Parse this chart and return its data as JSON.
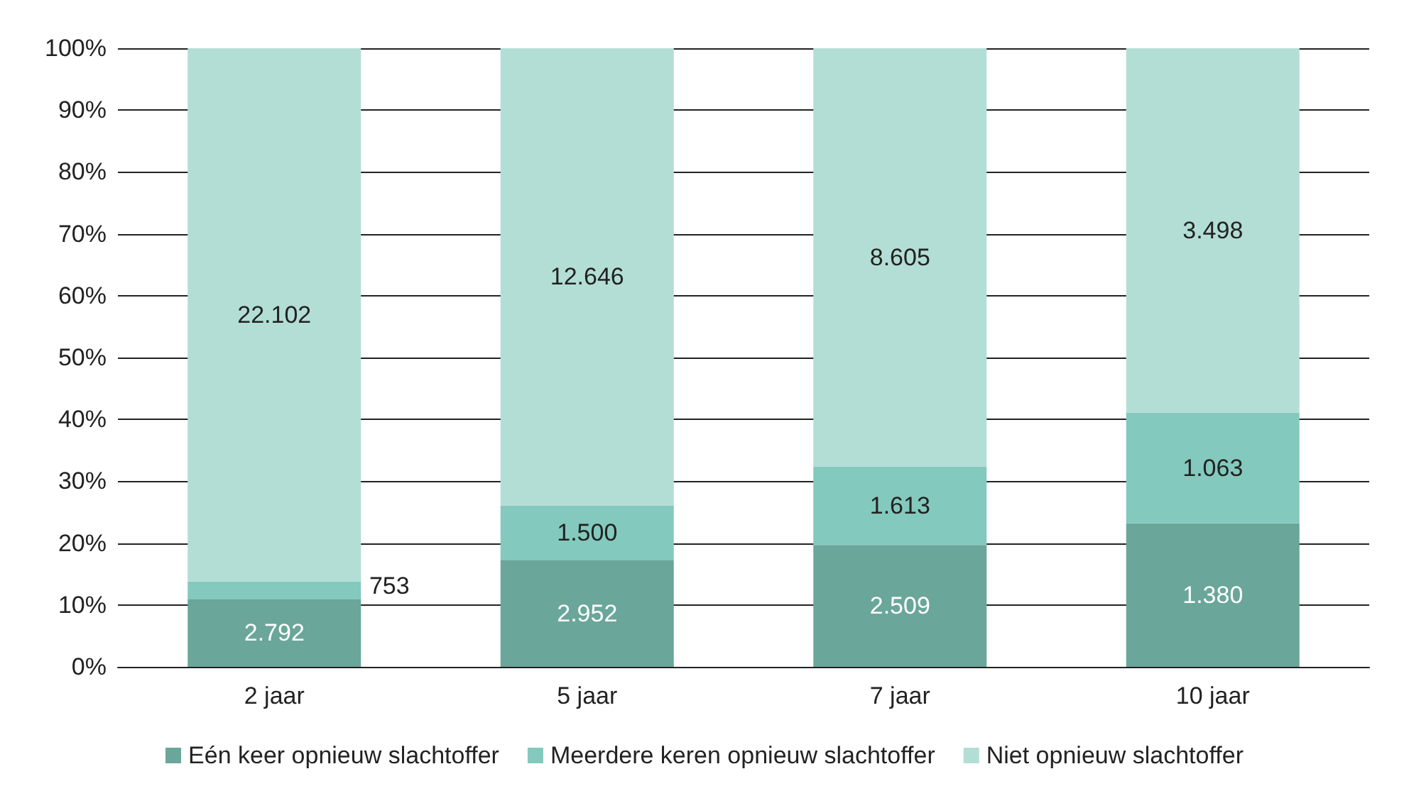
{
  "chart_data": {
    "type": "bar",
    "stacked": true,
    "categories": [
      "2 jaar",
      "5 jaar",
      "7 jaar",
      "10 jaar"
    ],
    "series": [
      {
        "name": "Eén keer opnieuw slachtoffer",
        "color": "#6aa69a",
        "values": [
          10.9,
          17.3,
          19.7,
          23.2
        ]
      },
      {
        "name": "Meerdere keren opnieuw slachtoffer",
        "color": "#84c9bd",
        "values": [
          2.9,
          8.8,
          12.7,
          17.9
        ]
      },
      {
        "name": "Niet opnieuw slachtoffer",
        "color": "#b3ded5",
        "values": [
          86.2,
          73.9,
          67.6,
          58.9
        ]
      }
    ],
    "annotations": [
      "2.792",
      "753",
      "22.102",
      "2.952",
      "1.500",
      "12.646",
      "2.509",
      "1.613",
      "8.605",
      "1.380",
      "1.063",
      "3.498"
    ],
    "ylim": [
      0,
      100
    ],
    "yticks": [
      {
        "value": 0,
        "label": "0%"
      },
      {
        "value": 10,
        "label": "10%"
      },
      {
        "value": 20,
        "label": "20%"
      },
      {
        "value": 30,
        "label": "30%"
      },
      {
        "value": 40,
        "label": "40%"
      },
      {
        "value": 50,
        "label": "50%"
      },
      {
        "value": 60,
        "label": "60%"
      },
      {
        "value": 70,
        "label": "70%"
      },
      {
        "value": 80,
        "label": "80%"
      },
      {
        "value": 90,
        "label": "90%"
      },
      {
        "value": 100,
        "label": "100%"
      }
    ],
    "grid": "y",
    "legend": "bottom"
  }
}
